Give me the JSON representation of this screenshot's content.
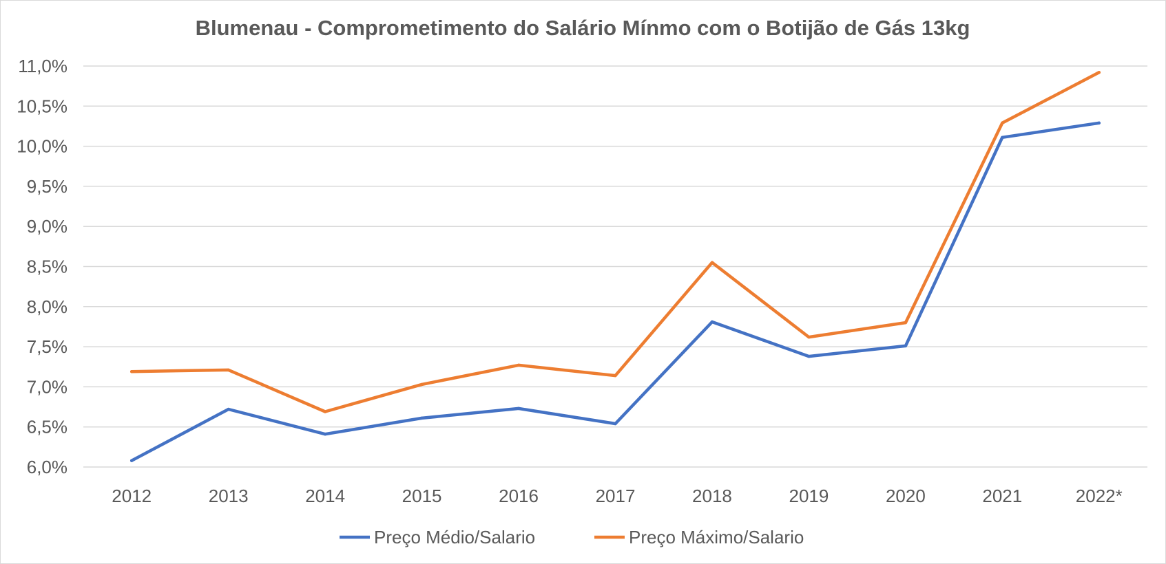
{
  "chart_data": {
    "type": "line",
    "title": "Blumenau - Comprometimento do Salário Mínmo com o Botijão de Gás 13kg",
    "xlabel": "",
    "ylabel": "",
    "categories": [
      "2012",
      "2013",
      "2014",
      "2015",
      "2016",
      "2017",
      "2018",
      "2019",
      "2020",
      "2021",
      "2022*"
    ],
    "ylim": [
      6.0,
      11.0
    ],
    "yticks": [
      6.0,
      6.5,
      7.0,
      7.5,
      8.0,
      8.5,
      9.0,
      9.5,
      10.0,
      10.5,
      11.0
    ],
    "ytick_labels": [
      "6,0%",
      "6,5%",
      "7,0%",
      "7,5%",
      "8,0%",
      "8,5%",
      "9,0%",
      "9,5%",
      "10,0%",
      "10,5%",
      "11,0%"
    ],
    "grid": true,
    "legend_position": "bottom",
    "series": [
      {
        "name": "Preço Médio/Salario",
        "color": "#4472C4",
        "values": [
          6.08,
          6.72,
          6.41,
          6.61,
          6.73,
          6.54,
          7.81,
          7.38,
          7.51,
          10.11,
          10.29
        ]
      },
      {
        "name": "Preço Máximo/Salario",
        "color": "#ED7D31",
        "values": [
          7.19,
          7.21,
          6.69,
          7.03,
          7.27,
          7.14,
          8.55,
          7.62,
          7.8,
          10.29,
          10.92
        ]
      }
    ]
  }
}
